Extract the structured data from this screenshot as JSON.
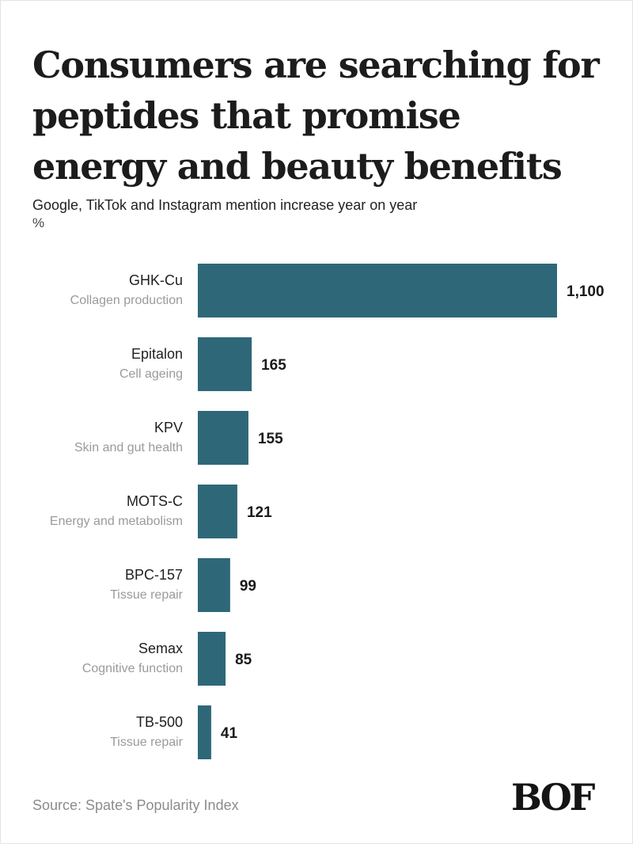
{
  "title": "Consumers are searching for peptides that promise energy and beauty benefits",
  "subtitle": "Google, TikTok and Instagram mention increase year on year",
  "unit": "%",
  "source": "Source: Spate's Popularity Index",
  "logo": "BOF",
  "colors": {
    "bar": "#2e6878",
    "label": "#1f1f1f",
    "sublabel": "#9a9a9a"
  },
  "chart_data": {
    "type": "bar",
    "orientation": "horizontal",
    "categories": [
      "GHK-Cu",
      "Epitalon",
      "KPV",
      "MOTS-C",
      "BPC-157",
      "Semax",
      "TB-500"
    ],
    "descriptions": [
      "Collagen production",
      "Cell ageing",
      "Skin and gut health",
      "Energy and metabolism",
      "Tissue repair",
      "Cognitive function",
      "Tissue repair"
    ],
    "values": [
      1100,
      165,
      155,
      121,
      99,
      85,
      41
    ],
    "value_labels": [
      "1,100",
      "165",
      "155",
      "121",
      "99",
      "85",
      "41"
    ],
    "title": "Consumers are searching for peptides that promise energy and beauty benefits",
    "subtitle": "Google, TikTok and Instagram mention increase year on year",
    "xlabel": "",
    "ylabel": "",
    "xlim": [
      0,
      1100
    ],
    "grid": false,
    "legend": "none"
  }
}
